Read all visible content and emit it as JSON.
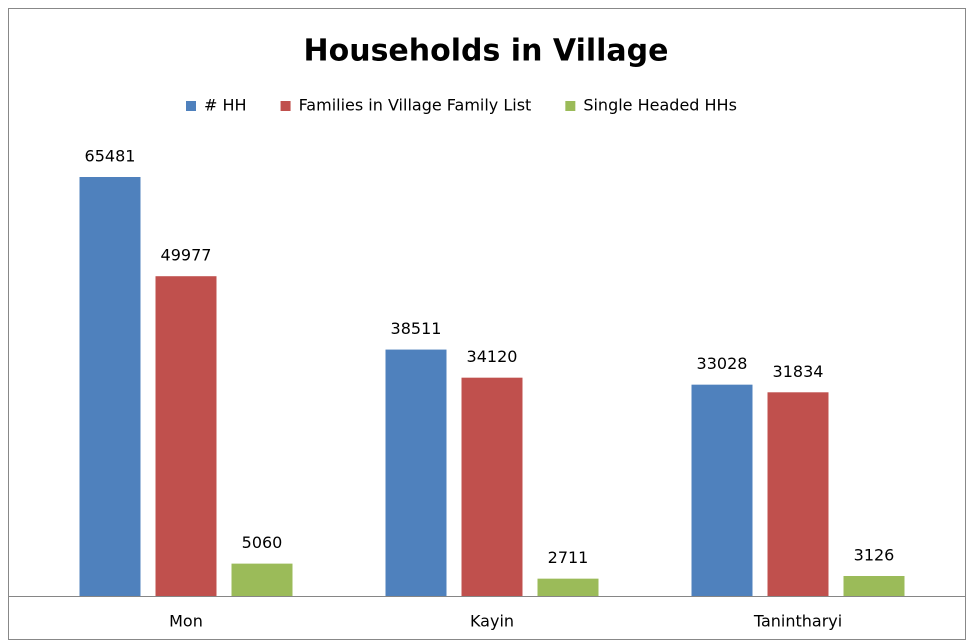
{
  "chart_data": {
    "type": "bar",
    "title": "Households in Village",
    "categories": [
      "Mon",
      "Kayin",
      "Tanintharyi"
    ],
    "series": [
      {
        "name": "# HH",
        "color": "#4f81bd",
        "values": [
          65481,
          38511,
          33028
        ]
      },
      {
        "name": "Families in Village Family List",
        "color": "#c0504d",
        "values": [
          49977,
          34120,
          31834
        ]
      },
      {
        "name": "Single Headed HHs",
        "color": "#9bbb59",
        "values": [
          5060,
          2711,
          3126
        ]
      }
    ],
    "legend": "top"
  }
}
